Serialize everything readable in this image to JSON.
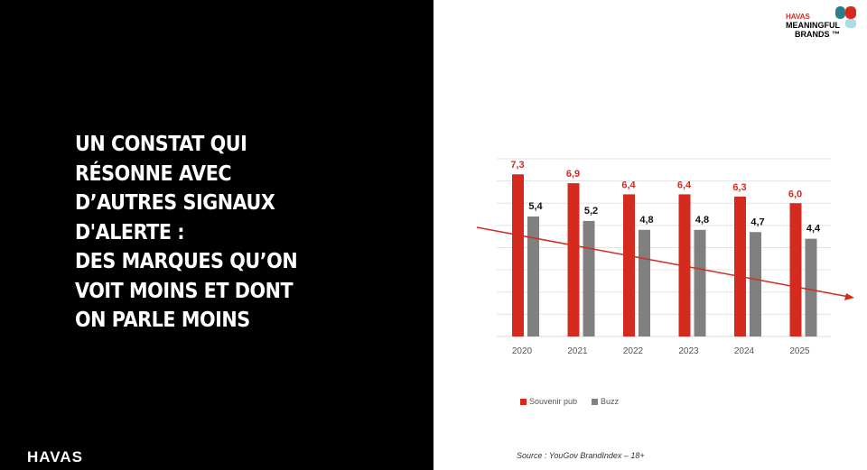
{
  "headline": "UN CONSTAT QUI\nRÉSONNE AVEC\nD’AUTRES SIGNAUX\nD'ALERTE :\nDES MARQUES QU’ON\nVOIT MOINS ET DONT\nON PARLE MOINS",
  "footer_logo": "HAVAS",
  "brand_logo": {
    "line1": "HAVAS",
    "line2": "MEANINGFUL",
    "line3": "BRANDS ™"
  },
  "source": "Source : YouGov BrandIndex – 18+",
  "colors": {
    "red": "#d52b1e",
    "gray": "#808080"
  },
  "chart_data": {
    "type": "bar",
    "categories": [
      "2020",
      "2021",
      "2022",
      "2023",
      "2024",
      "2025"
    ],
    "series": [
      {
        "name": "Souvenir pub",
        "values": [
          7.3,
          6.9,
          6.4,
          6.4,
          6.3,
          6.0
        ],
        "labels": [
          "7,3",
          "6,9",
          "6,4",
          "6,4",
          "6,3",
          "6,0"
        ],
        "color": "#d52b1e"
      },
      {
        "name": "Buzz",
        "values": [
          5.4,
          5.2,
          4.8,
          4.8,
          4.7,
          4.4
        ],
        "labels": [
          "5,4",
          "5,2",
          "4,8",
          "4,8",
          "4,7",
          "4,4"
        ],
        "color": "#808080"
      }
    ],
    "ylim": [
      0,
      8
    ],
    "grid": true,
    "legend": "bottom-left",
    "annotations": [
      "downward trend arrow"
    ]
  }
}
